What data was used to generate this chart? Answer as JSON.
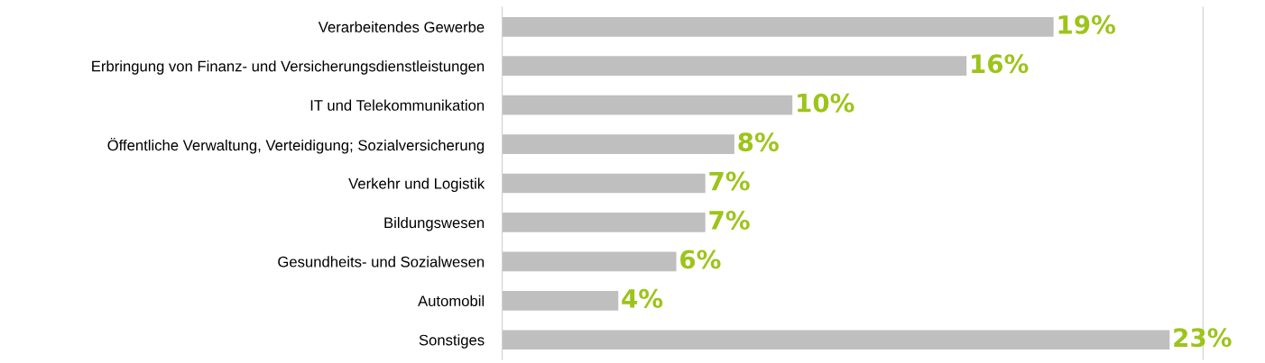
{
  "chart_data": {
    "type": "bar",
    "orientation": "horizontal",
    "categories": [
      "Verarbeitendes Gewerbe",
      "Erbringung von Finanz- und Versicherungsdienstleistungen",
      "IT und Telekommunikation",
      "Öffentliche Verwaltung, Verteidigung; Sozialversicherung",
      "Verkehr und Logistik",
      "Bildungswesen",
      "Gesundheits- und Sozialwesen",
      "Automobil",
      "Sonstiges"
    ],
    "values": [
      19,
      16,
      10,
      8,
      7,
      7,
      6,
      4,
      23
    ],
    "value_labels": [
      "19%",
      "16%",
      "10%",
      "8%",
      "7%",
      "7%",
      "6%",
      "4%",
      "23%"
    ],
    "color": "#bfbfbf",
    "grid": false,
    "legend": false
  }
}
